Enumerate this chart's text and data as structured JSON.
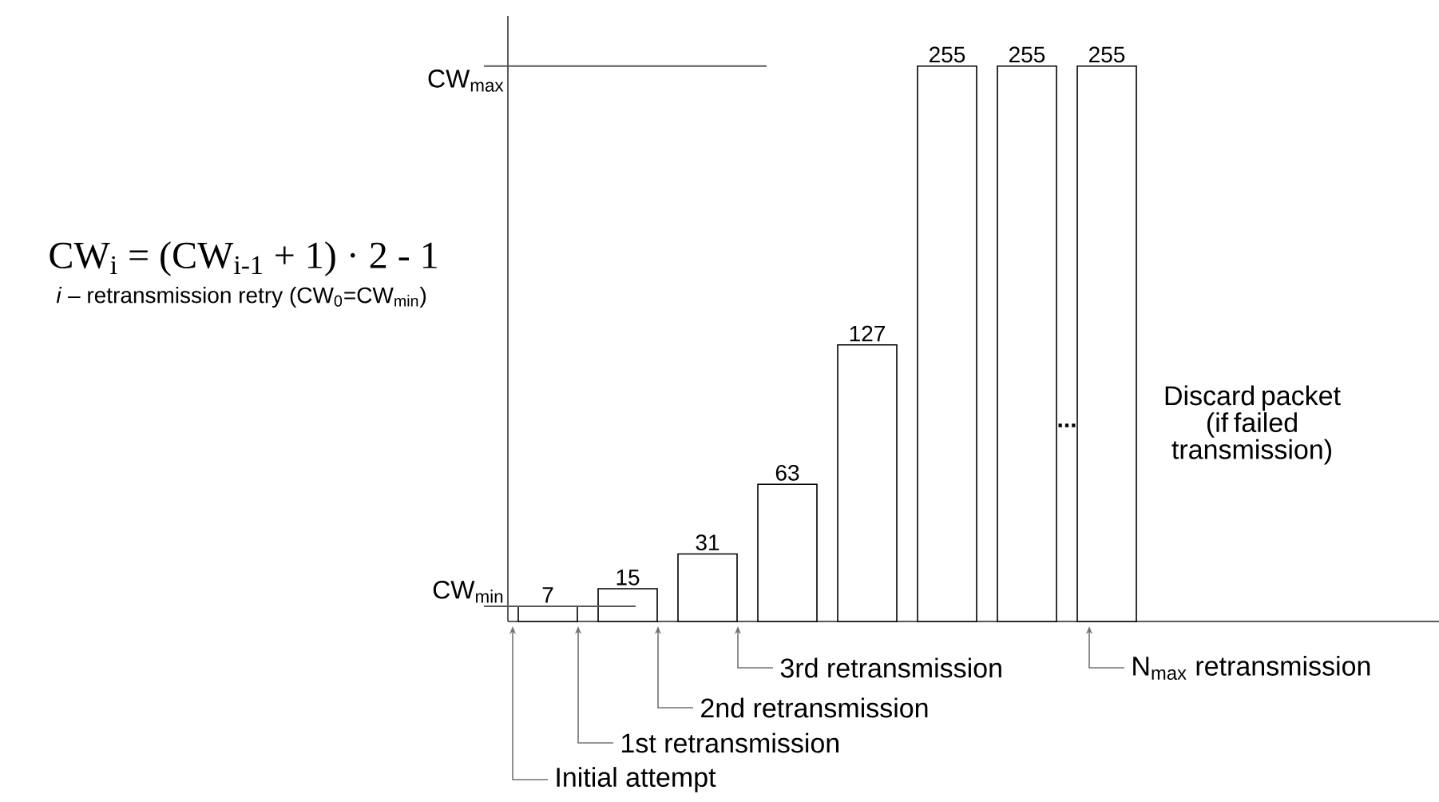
{
  "chart_data": {
    "type": "bar",
    "categories": [
      null,
      null,
      null,
      null,
      null,
      null,
      null,
      null
    ],
    "values": [
      7,
      15,
      31,
      63,
      127,
      255,
      255,
      255
    ],
    "color": "#ffffff",
    "data_labels": true,
    "ylim": [
      0,
      278
    ],
    "annotations": [
      "CW$_{i}$ = (CW$_{i-1}$ + 1) · 2 - 1",
      "*i* – retransmission retry (CW$_{0}$=CW$_{min}$)",
      "...",
      "Discard packet (if failed transmission)",
      "CW$_{min}$",
      "CW$_{max}$",
      "Initial attempt",
      "1st retransmission",
      "2nd retransmission",
      "3rd retransmission",
      "N$_{max}$ retransmission"
    ]
  }
}
